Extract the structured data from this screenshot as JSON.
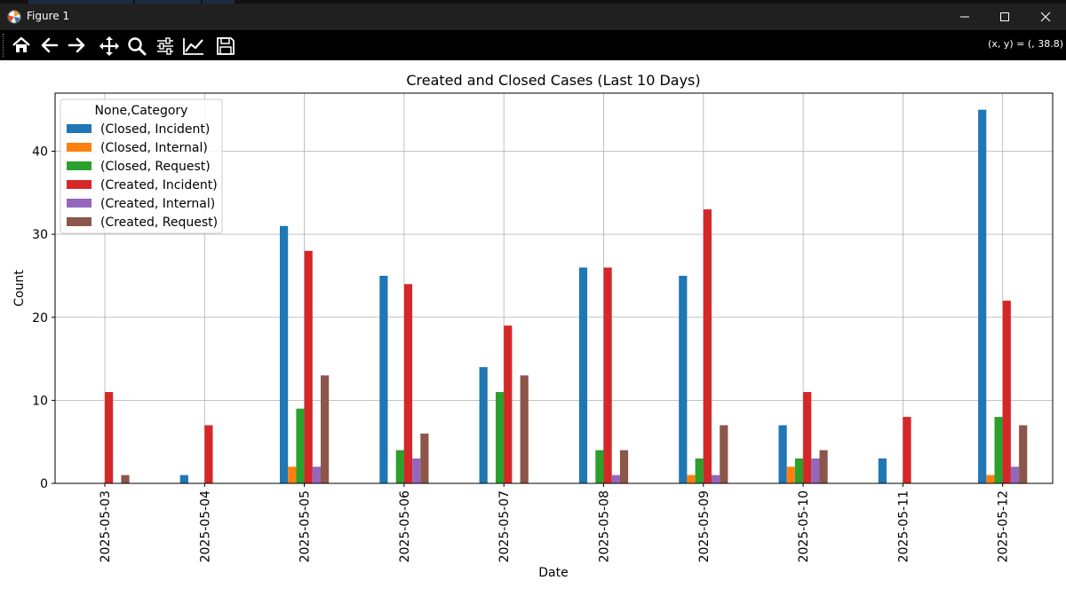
{
  "window": {
    "title": "Figure 1"
  },
  "toolbar": {
    "buttons": [
      {
        "name": "home-icon"
      },
      {
        "name": "back-arrow-icon"
      },
      {
        "name": "forward-arrow-icon"
      },
      {
        "name": "pan-icon"
      },
      {
        "name": "zoom-icon"
      },
      {
        "name": "configure-subplots-icon"
      },
      {
        "name": "edit-axis-icon"
      },
      {
        "name": "save-icon"
      }
    ],
    "coords": "(x, y) = (, 38.8)"
  },
  "chart_data": {
    "type": "bar",
    "title": "Created and Closed Cases (Last 10 Days)",
    "xlabel": "Date",
    "ylabel": "Count",
    "ylim": [
      0,
      47
    ],
    "yticks": [
      0,
      10,
      20,
      30,
      40
    ],
    "grid": true,
    "legend_title": "None,Category",
    "legend_position": "top-left",
    "categories": [
      "2025-05-03",
      "2025-05-04",
      "2025-05-05",
      "2025-05-06",
      "2025-05-07",
      "2025-05-08",
      "2025-05-09",
      "2025-05-10",
      "2025-05-11",
      "2025-05-12"
    ],
    "series": [
      {
        "name": "(Closed, Incident)",
        "color": "#1f77b4",
        "values": [
          0,
          1,
          31,
          25,
          14,
          26,
          25,
          7,
          3,
          45
        ]
      },
      {
        "name": "(Closed, Internal)",
        "color": "#ff7f0e",
        "values": [
          0,
          0,
          2,
          0,
          0,
          0,
          1,
          2,
          0,
          1
        ]
      },
      {
        "name": "(Closed, Request)",
        "color": "#2ca02c",
        "values": [
          0,
          0,
          9,
          4,
          11,
          4,
          3,
          3,
          0,
          8
        ]
      },
      {
        "name": "(Created, Incident)",
        "color": "#d62728",
        "values": [
          11,
          7,
          28,
          24,
          19,
          26,
          33,
          11,
          8,
          22
        ]
      },
      {
        "name": "(Created, Internal)",
        "color": "#9467bd",
        "values": [
          0,
          0,
          2,
          3,
          0,
          1,
          1,
          3,
          0,
          2
        ]
      },
      {
        "name": "(Created, Request)",
        "color": "#8c564b",
        "values": [
          1,
          0,
          13,
          6,
          13,
          4,
          7,
          4,
          0,
          7
        ]
      }
    ]
  }
}
